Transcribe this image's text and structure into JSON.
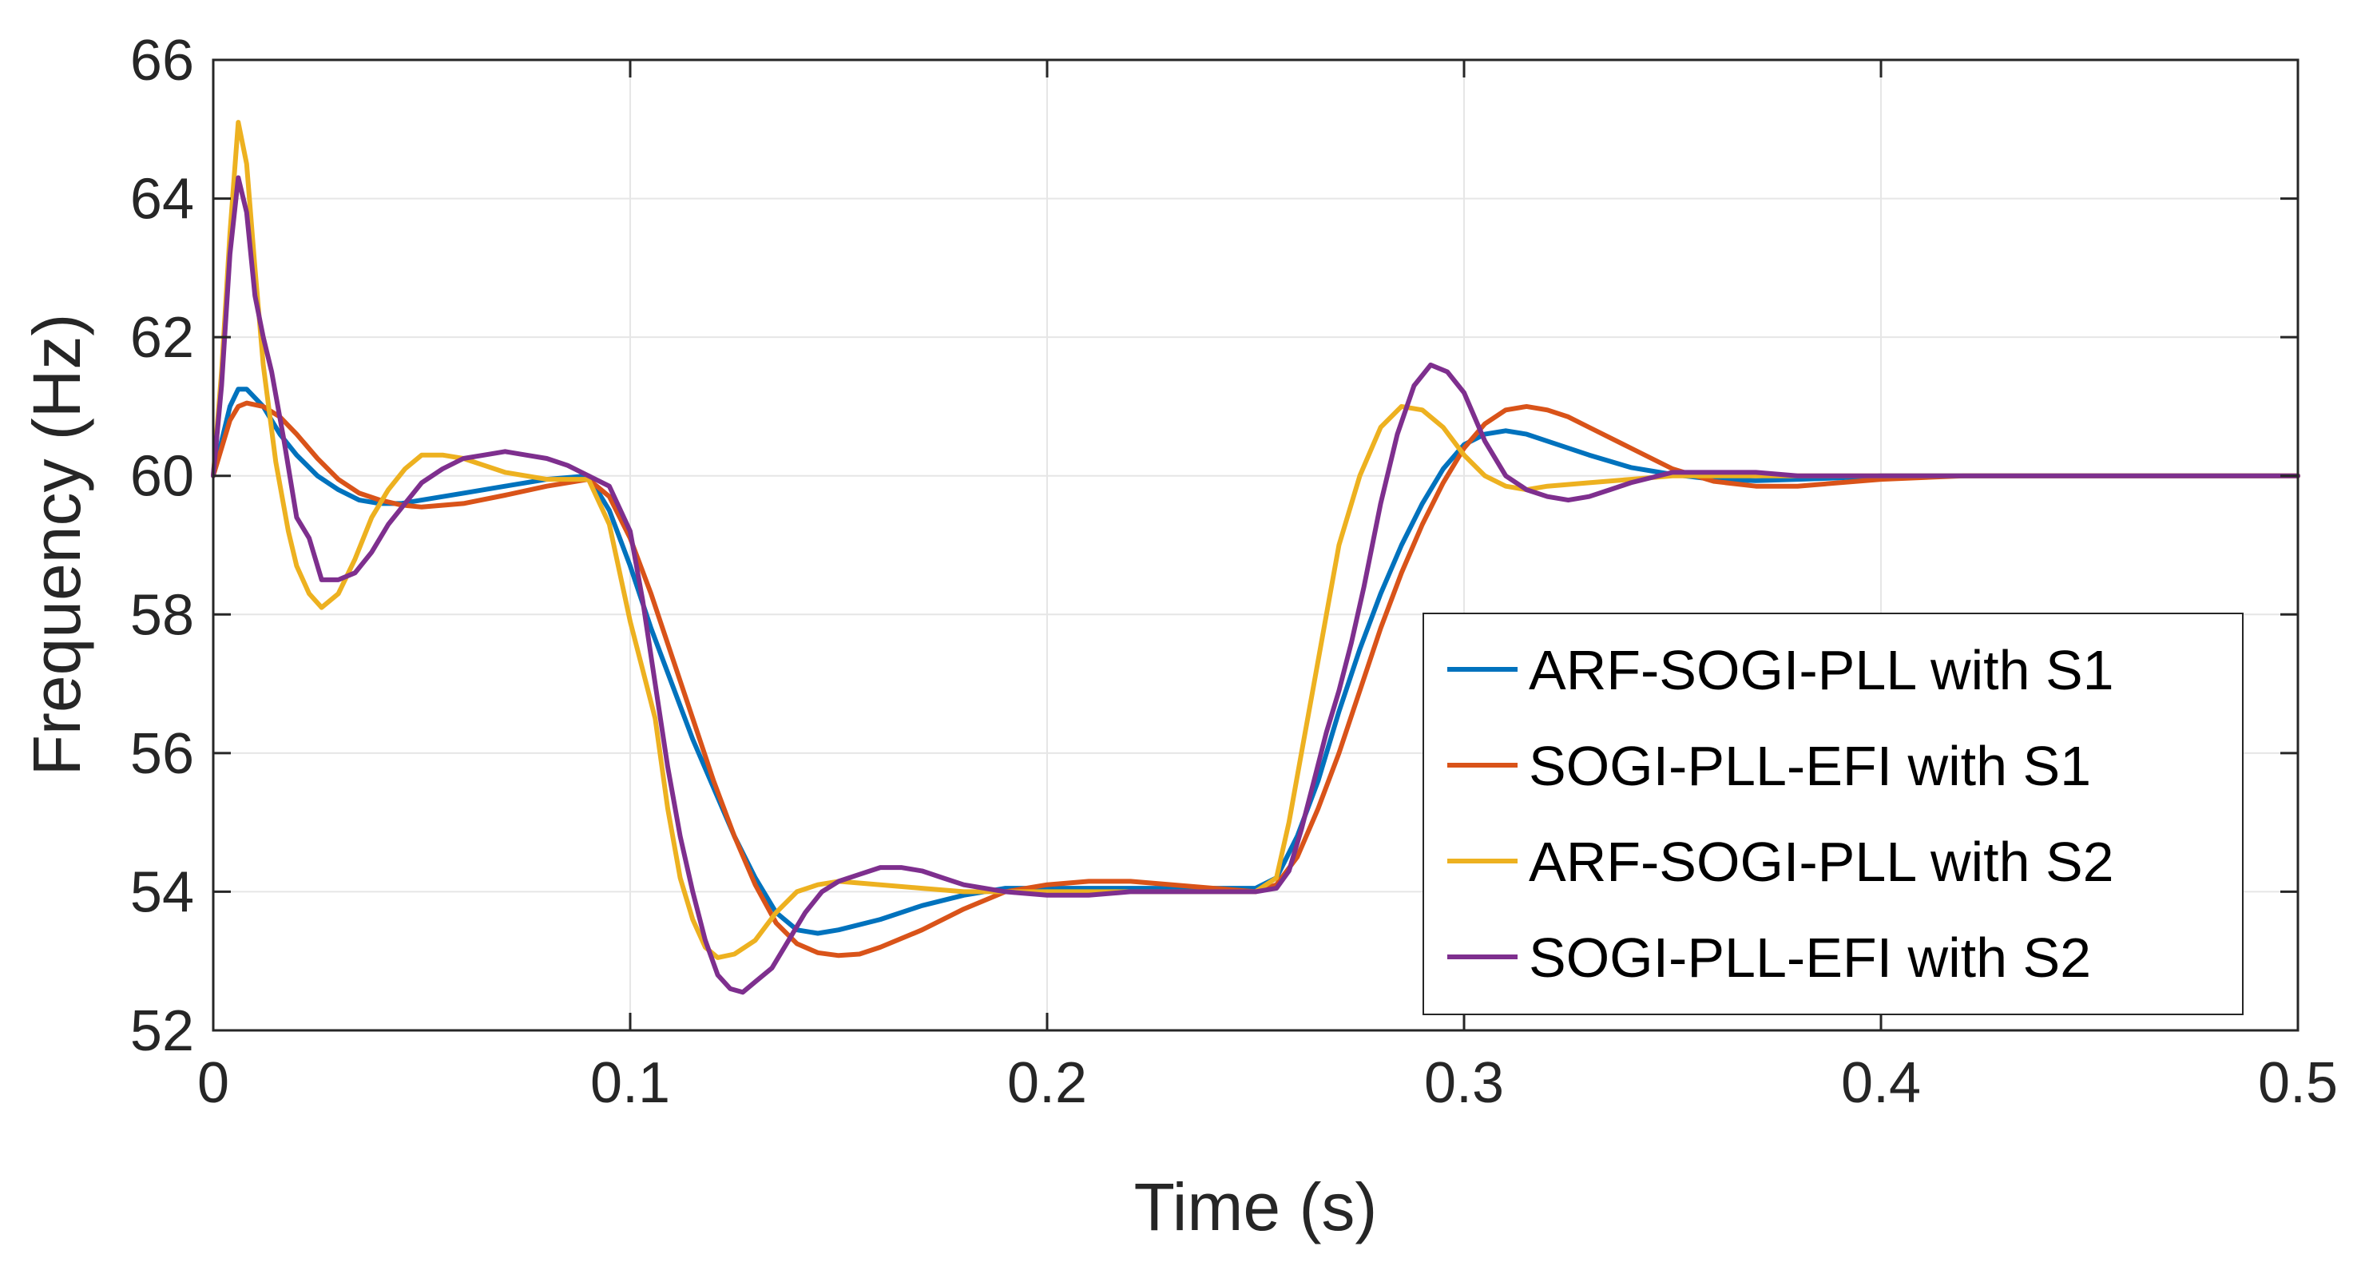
{
  "chart_data": {
    "type": "line",
    "title": "",
    "xlabel": "Time (s)",
    "ylabel": "Frequency (Hz)",
    "xlim": [
      0,
      0.5
    ],
    "ylim": [
      52,
      66
    ],
    "xticks": [
      0,
      0.1,
      0.2,
      0.3,
      0.4,
      0.5
    ],
    "xtick_labels": [
      "0",
      "0.1",
      "0.2",
      "0.3",
      "0.4",
      "0.5"
    ],
    "yticks": [
      52,
      54,
      56,
      58,
      60,
      62,
      64,
      66
    ],
    "ytick_labels": [
      "52",
      "54",
      "56",
      "58",
      "60",
      "62",
      "64",
      "66"
    ],
    "grid": true,
    "legend_position": "bottom-right",
    "series": [
      {
        "name": "ARF-SOGI-PLL with S1",
        "color": "#0072BD",
        "x": [
          0,
          0.002,
          0.004,
          0.006,
          0.008,
          0.012,
          0.016,
          0.02,
          0.025,
          0.03,
          0.035,
          0.04,
          0.045,
          0.05,
          0.06,
          0.07,
          0.08,
          0.09,
          0.095,
          0.1,
          0.105,
          0.11,
          0.115,
          0.12,
          0.125,
          0.13,
          0.135,
          0.14,
          0.145,
          0.15,
          0.16,
          0.17,
          0.18,
          0.19,
          0.2,
          0.21,
          0.22,
          0.23,
          0.24,
          0.25,
          0.255,
          0.26,
          0.265,
          0.27,
          0.275,
          0.28,
          0.285,
          0.29,
          0.295,
          0.3,
          0.305,
          0.31,
          0.315,
          0.32,
          0.33,
          0.34,
          0.35,
          0.36,
          0.37,
          0.38,
          0.39,
          0.4,
          0.42,
          0.44,
          0.46,
          0.48,
          0.5
        ],
        "y": [
          60,
          60.5,
          61.0,
          61.25,
          61.25,
          61.0,
          60.6,
          60.3,
          60.0,
          59.8,
          59.65,
          59.6,
          59.6,
          59.65,
          59.75,
          59.85,
          59.95,
          60.0,
          59.5,
          58.7,
          57.8,
          57.0,
          56.2,
          55.5,
          54.8,
          54.2,
          53.7,
          53.45,
          53.4,
          53.45,
          53.6,
          53.8,
          53.95,
          54.05,
          54.05,
          54.05,
          54.05,
          54.05,
          54.05,
          54.05,
          54.2,
          54.8,
          55.6,
          56.6,
          57.5,
          58.3,
          59.0,
          59.6,
          60.1,
          60.45,
          60.6,
          60.65,
          60.6,
          60.5,
          60.3,
          60.12,
          60.02,
          59.95,
          59.93,
          59.95,
          59.97,
          60.0,
          60.0,
          60.0,
          60.0,
          60.0,
          60.0
        ]
      },
      {
        "name": "SOGI-PLL-EFI with S1",
        "color": "#D95319",
        "x": [
          0,
          0.002,
          0.004,
          0.006,
          0.008,
          0.012,
          0.016,
          0.02,
          0.025,
          0.03,
          0.035,
          0.04,
          0.045,
          0.05,
          0.06,
          0.07,
          0.08,
          0.09,
          0.095,
          0.1,
          0.105,
          0.11,
          0.115,
          0.12,
          0.125,
          0.13,
          0.135,
          0.14,
          0.145,
          0.15,
          0.155,
          0.16,
          0.17,
          0.18,
          0.19,
          0.2,
          0.21,
          0.22,
          0.23,
          0.24,
          0.25,
          0.255,
          0.26,
          0.265,
          0.27,
          0.275,
          0.28,
          0.285,
          0.29,
          0.295,
          0.3,
          0.305,
          0.31,
          0.315,
          0.32,
          0.325,
          0.33,
          0.34,
          0.35,
          0.36,
          0.37,
          0.38,
          0.39,
          0.4,
          0.42,
          0.44,
          0.46,
          0.48,
          0.5
        ],
        "y": [
          60,
          60.4,
          60.8,
          61.0,
          61.05,
          61.0,
          60.85,
          60.6,
          60.25,
          59.95,
          59.75,
          59.65,
          59.58,
          59.55,
          59.6,
          59.72,
          59.85,
          59.95,
          59.7,
          59.1,
          58.3,
          57.4,
          56.5,
          55.6,
          54.8,
          54.1,
          53.55,
          53.25,
          53.12,
          53.08,
          53.1,
          53.2,
          53.45,
          53.75,
          54.0,
          54.1,
          54.15,
          54.15,
          54.1,
          54.05,
          54.0,
          54.1,
          54.5,
          55.2,
          56.0,
          56.9,
          57.8,
          58.6,
          59.3,
          59.9,
          60.4,
          60.75,
          60.95,
          61.0,
          60.95,
          60.85,
          60.7,
          60.4,
          60.1,
          59.92,
          59.85,
          59.85,
          59.9,
          59.95,
          60.0,
          60.0,
          60.0,
          60.0,
          60.0
        ]
      },
      {
        "name": "ARF-SOGI-PLL with S2",
        "color": "#EDB120",
        "x": [
          0,
          0.002,
          0.004,
          0.006,
          0.008,
          0.01,
          0.012,
          0.015,
          0.018,
          0.02,
          0.023,
          0.026,
          0.03,
          0.034,
          0.038,
          0.042,
          0.046,
          0.05,
          0.055,
          0.06,
          0.065,
          0.07,
          0.08,
          0.09,
          0.095,
          0.1,
          0.103,
          0.106,
          0.109,
          0.112,
          0.115,
          0.118,
          0.121,
          0.125,
          0.13,
          0.135,
          0.14,
          0.145,
          0.15,
          0.16,
          0.17,
          0.18,
          0.19,
          0.2,
          0.21,
          0.22,
          0.23,
          0.24,
          0.25,
          0.255,
          0.258,
          0.261,
          0.264,
          0.267,
          0.27,
          0.275,
          0.28,
          0.285,
          0.29,
          0.295,
          0.3,
          0.305,
          0.31,
          0.315,
          0.32,
          0.33,
          0.34,
          0.35,
          0.36,
          0.38,
          0.4,
          0.42,
          0.44,
          0.46,
          0.48,
          0.5
        ],
        "y": [
          60,
          61.5,
          63.5,
          65.1,
          64.5,
          63.0,
          61.6,
          60.2,
          59.2,
          58.7,
          58.3,
          58.1,
          58.3,
          58.8,
          59.4,
          59.8,
          60.1,
          60.3,
          60.3,
          60.25,
          60.15,
          60.05,
          59.95,
          59.95,
          59.3,
          57.9,
          57.2,
          56.5,
          55.2,
          54.2,
          53.6,
          53.2,
          53.05,
          53.1,
          53.3,
          53.7,
          54.0,
          54.1,
          54.15,
          54.1,
          54.05,
          54.0,
          54.0,
          54.0,
          54.0,
          54.0,
          54.0,
          54.0,
          54.0,
          54.2,
          55.0,
          56.0,
          57.0,
          58.0,
          59.0,
          60.0,
          60.7,
          61.0,
          60.95,
          60.7,
          60.3,
          60.0,
          59.85,
          59.8,
          59.85,
          59.9,
          59.95,
          60.0,
          60.0,
          60.0,
          60.0,
          60.0,
          60.0,
          60.0,
          60.0,
          60.0
        ]
      },
      {
        "name": "SOGI-PLL-EFI with S2",
        "color": "#7E2F8E",
        "x": [
          0,
          0.002,
          0.004,
          0.006,
          0.008,
          0.01,
          0.012,
          0.014,
          0.017,
          0.02,
          0.023,
          0.026,
          0.03,
          0.034,
          0.038,
          0.042,
          0.046,
          0.05,
          0.055,
          0.06,
          0.065,
          0.07,
          0.075,
          0.08,
          0.085,
          0.09,
          0.095,
          0.1,
          0.103,
          0.106,
          0.109,
          0.112,
          0.115,
          0.118,
          0.121,
          0.124,
          0.127,
          0.13,
          0.134,
          0.138,
          0.142,
          0.146,
          0.15,
          0.155,
          0.16,
          0.165,
          0.17,
          0.175,
          0.18,
          0.19,
          0.2,
          0.21,
          0.22,
          0.23,
          0.24,
          0.25,
          0.255,
          0.258,
          0.261,
          0.264,
          0.267,
          0.27,
          0.273,
          0.276,
          0.28,
          0.284,
          0.288,
          0.292,
          0.296,
          0.3,
          0.305,
          0.31,
          0.315,
          0.32,
          0.325,
          0.33,
          0.335,
          0.34,
          0.35,
          0.36,
          0.37,
          0.38,
          0.39,
          0.4,
          0.42,
          0.44,
          0.46,
          0.48,
          0.5
        ],
        "y": [
          60,
          61.3,
          63.2,
          64.3,
          63.8,
          62.6,
          62.0,
          61.5,
          60.5,
          59.4,
          59.1,
          58.5,
          58.5,
          58.6,
          58.9,
          59.3,
          59.6,
          59.9,
          60.1,
          60.25,
          60.3,
          60.35,
          60.3,
          60.25,
          60.15,
          60.0,
          59.85,
          59.2,
          58.2,
          57.0,
          55.8,
          54.8,
          54.0,
          53.3,
          52.8,
          52.6,
          52.55,
          52.7,
          52.9,
          53.3,
          53.7,
          54.0,
          54.15,
          54.25,
          54.35,
          54.35,
          54.3,
          54.2,
          54.1,
          54.0,
          53.95,
          53.95,
          54.0,
          54.0,
          54.0,
          54.0,
          54.05,
          54.3,
          54.9,
          55.6,
          56.3,
          56.9,
          57.6,
          58.4,
          59.6,
          60.6,
          61.3,
          61.6,
          61.5,
          61.2,
          60.5,
          60.0,
          59.8,
          59.7,
          59.65,
          59.7,
          59.8,
          59.9,
          60.05,
          60.05,
          60.05,
          60.0,
          60.0,
          60.0,
          60.0,
          60.0,
          60.0,
          60.0,
          60.0
        ]
      }
    ]
  }
}
